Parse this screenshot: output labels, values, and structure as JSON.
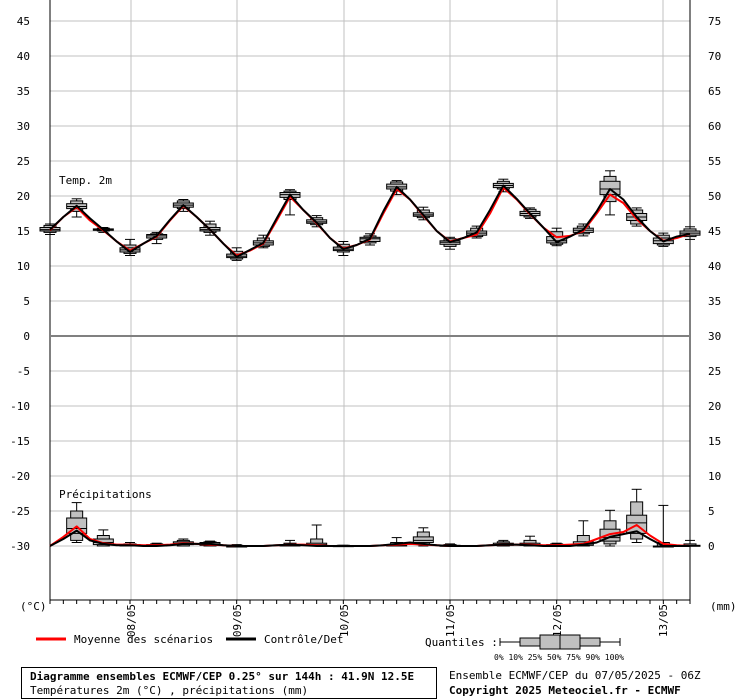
{
  "chart_data": {
    "type": "boxplot-line",
    "panels": [
      {
        "name": "Temp. 2m",
        "left_axis_ticks": [
          45,
          40,
          35,
          30,
          25,
          20,
          15,
          10,
          5,
          0
        ],
        "right_axis_ticks": [
          75,
          70,
          65,
          60,
          55,
          50,
          45,
          40,
          35,
          30
        ]
      },
      {
        "name": "Précipitations",
        "left_axis_ticks": [
          0,
          -5,
          -10,
          -15,
          -20,
          -25,
          -30
        ],
        "right_axis_ticks": [
          30,
          25,
          20,
          15,
          10,
          5,
          0
        ]
      }
    ],
    "left_unit": "(°C)",
    "right_unit": "(mm)",
    "x_labels": [
      "08/05",
      "09/05",
      "10/05",
      "11/05",
      "12/05",
      "13/05"
    ],
    "temperature": {
      "times": [
        0,
        0.5,
        1,
        1.5,
        2,
        2.5,
        3,
        3.5,
        4,
        4.5,
        5,
        5.5,
        6,
        6.5,
        7,
        7.5,
        8,
        8.5,
        9,
        9.5,
        10,
        10.5,
        11,
        11.5,
        12,
        12.5,
        13,
        13.5,
        14,
        14.5,
        15,
        15.5,
        16,
        16.5,
        17,
        17.5,
        18,
        18.5,
        19,
        19.5,
        20,
        20.5,
        21,
        21.5,
        22,
        22.5,
        23,
        23.5,
        24
      ],
      "scenario_mean": [
        15.1,
        17,
        18.4,
        16.5,
        15.1,
        13.5,
        12.2,
        13.2,
        14.2,
        16.5,
        18.6,
        17,
        15.2,
        13.2,
        11.5,
        12.2,
        13.2,
        16.5,
        19.9,
        18,
        16.1,
        14,
        12.5,
        13,
        13.8,
        17.5,
        21,
        19.5,
        17.2,
        15,
        13.5,
        14,
        14.5,
        17.5,
        21.2,
        19.5,
        17.4,
        15.5,
        14.1,
        14.3,
        15,
        17.5,
        20.2,
        19,
        16.7,
        15,
        13.6,
        14,
        14.6
      ],
      "control": [
        15.2,
        17,
        18.6,
        16.8,
        15.2,
        13.5,
        12,
        13.2,
        14.3,
        16.6,
        18.7,
        17,
        15.2,
        13.2,
        11.3,
        12.3,
        13.3,
        16.8,
        20.2,
        18,
        16.2,
        14,
        12.4,
        13,
        13.9,
        17.8,
        21.3,
        19.5,
        17.3,
        15,
        13.4,
        14,
        14.8,
        18,
        21.5,
        19.6,
        17.5,
        15.5,
        13.4,
        14.2,
        15.2,
        17.8,
        21,
        19.5,
        17,
        15,
        13.5,
        14.2,
        14.6
      ],
      "boxes": [
        {
          "t": 0,
          "p0": 14.5,
          "p10": 14.8,
          "p25": 15.0,
          "p50": 15.2,
          "p75": 15.5,
          "p90": 15.8,
          "p100": 16.0
        },
        {
          "t": 1,
          "p0": 17.0,
          "p10": 17.8,
          "p25": 18.2,
          "p50": 18.5,
          "p75": 18.9,
          "p90": 19.3,
          "p100": 19.6
        },
        {
          "t": 2,
          "p0": 14.8,
          "p10": 15.0,
          "p25": 15.1,
          "p50": 15.2,
          "p75": 15.3,
          "p90": 15.4,
          "p100": 15.5
        },
        {
          "t": 3,
          "p0": 11.5,
          "p10": 11.8,
          "p25": 12.0,
          "p50": 12.3,
          "p75": 12.6,
          "p90": 13.0,
          "p100": 13.8
        },
        {
          "t": 4,
          "p0": 13.2,
          "p10": 13.8,
          "p25": 14.0,
          "p50": 14.3,
          "p75": 14.5,
          "p90": 14.6,
          "p100": 14.8
        },
        {
          "t": 5,
          "p0": 17.8,
          "p10": 18.2,
          "p25": 18.4,
          "p50": 18.7,
          "p75": 19.0,
          "p90": 19.3,
          "p100": 19.5
        },
        {
          "t": 6,
          "p0": 14.4,
          "p10": 14.8,
          "p25": 15.0,
          "p50": 15.2,
          "p75": 15.5,
          "p90": 16.0,
          "p100": 16.4
        },
        {
          "t": 7,
          "p0": 10.8,
          "p10": 11.0,
          "p25": 11.2,
          "p50": 11.4,
          "p75": 11.7,
          "p90": 12.1,
          "p100": 12.6
        },
        {
          "t": 8,
          "p0": 12.6,
          "p10": 12.8,
          "p25": 13.0,
          "p50": 13.3,
          "p75": 13.6,
          "p90": 14.0,
          "p100": 14.4
        },
        {
          "t": 9,
          "p0": 17.3,
          "p10": 19.5,
          "p25": 19.8,
          "p50": 20.2,
          "p75": 20.5,
          "p90": 20.7,
          "p100": 20.9
        },
        {
          "t": 10,
          "p0": 15.6,
          "p10": 15.9,
          "p25": 16.1,
          "p50": 16.3,
          "p75": 16.6,
          "p90": 16.9,
          "p100": 17.2
        },
        {
          "t": 11,
          "p0": 11.5,
          "p10": 12.0,
          "p25": 12.2,
          "p50": 12.4,
          "p75": 12.7,
          "p90": 13.1,
          "p100": 13.5
        },
        {
          "t": 12,
          "p0": 13.0,
          "p10": 13.3,
          "p25": 13.5,
          "p50": 13.9,
          "p75": 14.1,
          "p90": 14.3,
          "p100": 14.6
        },
        {
          "t": 13,
          "p0": 20.2,
          "p10": 20.7,
          "p25": 21.0,
          "p50": 21.3,
          "p75": 21.7,
          "p90": 22.0,
          "p100": 22.2
        },
        {
          "t": 14,
          "p0": 16.6,
          "p10": 16.9,
          "p25": 17.1,
          "p50": 17.3,
          "p75": 17.6,
          "p90": 18.0,
          "p100": 18.4
        },
        {
          "t": 15,
          "p0": 12.4,
          "p10": 12.8,
          "p25": 13.1,
          "p50": 13.4,
          "p75": 13.6,
          "p90": 13.9,
          "p100": 14.1
        },
        {
          "t": 16,
          "p0": 14.0,
          "p10": 14.2,
          "p25": 14.4,
          "p50": 14.7,
          "p75": 15.0,
          "p90": 15.4,
          "p100": 15.7
        },
        {
          "t": 17,
          "p0": 20.6,
          "p10": 21.0,
          "p25": 21.2,
          "p50": 21.5,
          "p75": 21.8,
          "p90": 22.1,
          "p100": 22.4
        },
        {
          "t": 18,
          "p0": 16.8,
          "p10": 17.0,
          "p25": 17.2,
          "p50": 17.5,
          "p75": 17.8,
          "p90": 18.1,
          "p100": 18.3
        },
        {
          "t": 19,
          "p0": 12.9,
          "p10": 13.1,
          "p25": 13.3,
          "p50": 13.6,
          "p75": 14.2,
          "p90": 14.9,
          "p100": 15.4
        },
        {
          "t": 20,
          "p0": 14.3,
          "p10": 14.6,
          "p25": 14.8,
          "p50": 15.1,
          "p75": 15.4,
          "p90": 15.7,
          "p100": 16.0
        },
        {
          "t": 21,
          "p0": 17.3,
          "p10": 19.2,
          "p25": 20.2,
          "p50": 21.0,
          "p75": 22.1,
          "p90": 22.8,
          "p100": 23.6
        },
        {
          "t": 22,
          "p0": 15.7,
          "p10": 16.0,
          "p25": 16.5,
          "p50": 17.0,
          "p75": 17.5,
          "p90": 18.0,
          "p100": 18.3
        },
        {
          "t": 23,
          "p0": 12.8,
          "p10": 13.0,
          "p25": 13.2,
          "p50": 13.6,
          "p75": 14.0,
          "p90": 14.4,
          "p100": 14.7
        },
        {
          "t": 24,
          "p0": 13.8,
          "p10": 14.2,
          "p25": 14.4,
          "p50": 14.7,
          "p75": 15.0,
          "p90": 15.3,
          "p100": 15.6
        }
      ]
    },
    "precipitation": {
      "times": [
        0,
        0.5,
        1,
        1.5,
        2,
        2.5,
        3,
        3.5,
        4,
        4.5,
        5,
        5.5,
        6,
        6.5,
        7,
        7.5,
        8,
        8.5,
        9,
        9.5,
        10,
        10.5,
        11,
        11.5,
        12,
        12.5,
        13,
        13.5,
        14,
        14.5,
        15,
        15.5,
        16,
        16.5,
        17,
        17.5,
        18,
        18.5,
        19,
        19.5,
        20,
        20.5,
        21,
        21.5,
        22,
        22.5,
        23,
        23.5,
        24
      ],
      "scenario_mean": [
        0,
        1.3,
        2.8,
        1.0,
        0.4,
        0.2,
        0.2,
        0.1,
        0.1,
        0.2,
        0.4,
        0.3,
        0.2,
        0.1,
        0,
        0,
        0,
        0.1,
        0.2,
        0.2,
        0.1,
        0,
        0,
        0,
        0,
        0.1,
        0.2,
        0.3,
        0.2,
        0.1,
        0,
        0,
        0,
        0.1,
        0.2,
        0.2,
        0.2,
        0.1,
        0.1,
        0.2,
        0.3,
        1.0,
        1.7,
        2.0,
        3.0,
        1.5,
        0.3,
        0.1,
        0
      ],
      "control": [
        0,
        1.0,
        2.2,
        0.8,
        0.3,
        0.1,
        0.1,
        0,
        0,
        0.1,
        0.3,
        0.3,
        0.3,
        0.1,
        0,
        0,
        0,
        0.1,
        0.2,
        0.1,
        0,
        0,
        0,
        0,
        0,
        0.1,
        0.3,
        0.5,
        0.3,
        0.1,
        0,
        0,
        0,
        0.1,
        0.2,
        0.2,
        0.1,
        0,
        0,
        0,
        0.2,
        0.5,
        1.3,
        1.7,
        2.1,
        1.0,
        0,
        0,
        0
      ],
      "boxes": [
        {
          "t": 1,
          "p0": 0.5,
          "p10": 0.8,
          "p25": 1.8,
          "p50": 2.5,
          "p75": 4.0,
          "p90": 5.0,
          "p100": 6.2
        },
        {
          "t": 2,
          "p0": 0,
          "p10": 0,
          "p25": 0.2,
          "p50": 0.5,
          "p75": 1.0,
          "p90": 1.5,
          "p100": 2.3
        },
        {
          "t": 3,
          "p0": 0,
          "p10": 0,
          "p25": 0,
          "p50": 0.1,
          "p75": 0.2,
          "p90": 0.3,
          "p100": 0.5
        },
        {
          "t": 4,
          "p0": 0,
          "p10": 0,
          "p25": 0,
          "p50": 0.1,
          "p75": 0.2,
          "p90": 0.3,
          "p100": 0.4
        },
        {
          "t": 5,
          "p0": 0,
          "p10": 0,
          "p25": 0.2,
          "p50": 0.4,
          "p75": 0.6,
          "p90": 0.8,
          "p100": 1.0
        },
        {
          "t": 6,
          "p0": 0,
          "p10": 0,
          "p25": 0.1,
          "p50": 0.3,
          "p75": 0.5,
          "p90": 0.6,
          "p100": 0.7
        },
        {
          "t": 7,
          "p0": 0,
          "p10": 0,
          "p25": 0,
          "p50": 0,
          "p75": 0,
          "p90": 0.1,
          "p100": 0.2
        },
        {
          "t": 9,
          "p0": 0,
          "p10": 0,
          "p25": 0,
          "p50": 0.1,
          "p75": 0.2,
          "p90": 0.4,
          "p100": 0.8
        },
        {
          "t": 10,
          "p0": 0,
          "p10": 0,
          "p25": 0.1,
          "p50": 0.2,
          "p75": 0.4,
          "p90": 1.0,
          "p100": 3.0
        },
        {
          "t": 11,
          "p0": 0,
          "p10": 0,
          "p25": 0,
          "p50": 0,
          "p75": 0.05,
          "p90": 0.1,
          "p100": 0.1
        },
        {
          "t": 13,
          "p0": 0,
          "p10": 0,
          "p25": 0,
          "p50": 0.1,
          "p75": 0.2,
          "p90": 0.5,
          "p100": 1.2
        },
        {
          "t": 14,
          "p0": 0,
          "p10": 0.2,
          "p25": 0.5,
          "p50": 0.8,
          "p75": 1.3,
          "p90": 2.0,
          "p100": 2.6
        },
        {
          "t": 15,
          "p0": 0,
          "p10": 0,
          "p25": 0,
          "p50": 0,
          "p75": 0.1,
          "p90": 0.2,
          "p100": 0.3
        },
        {
          "t": 17,
          "p0": 0,
          "p10": 0,
          "p25": 0.1,
          "p50": 0.2,
          "p75": 0.4,
          "p90": 0.6,
          "p100": 0.8
        },
        {
          "t": 18,
          "p0": 0,
          "p10": 0,
          "p25": 0.1,
          "p50": 0.2,
          "p75": 0.4,
          "p90": 0.8,
          "p100": 1.4
        },
        {
          "t": 19,
          "p0": 0,
          "p10": 0,
          "p25": 0,
          "p50": 0.1,
          "p75": 0.2,
          "p90": 0.3,
          "p100": 0.4
        },
        {
          "t": 20,
          "p0": 0,
          "p10": 0,
          "p25": 0.1,
          "p50": 0.3,
          "p75": 0.6,
          "p90": 1.5,
          "p100": 3.6
        },
        {
          "t": 21,
          "p0": 0,
          "p10": 0.3,
          "p25": 0.7,
          "p50": 1.2,
          "p75": 2.4,
          "p90": 3.6,
          "p100": 5.1
        },
        {
          "t": 22,
          "p0": 0.5,
          "p10": 1.0,
          "p25": 1.8,
          "p50": 3.3,
          "p75": 4.4,
          "p90": 6.3,
          "p100": 8.1
        },
        {
          "t": 23,
          "p0": 0,
          "p10": 0,
          "p25": 0,
          "p50": 0,
          "p75": 0,
          "p90": 0.5,
          "p100": 5.8
        },
        {
          "t": 24,
          "p0": 0,
          "p10": 0,
          "p25": 0,
          "p50": 0,
          "p75": 0.1,
          "p90": 0.3,
          "p100": 0.8
        }
      ]
    },
    "colors": {
      "scenario_mean": "#ff0000",
      "control": "#000000",
      "box_fill": "#c0c0c0",
      "grid": "#c0c0c0"
    }
  },
  "legend": {
    "mean_label": "Moyenne des scénarios",
    "control_label": "Contrôle/Det",
    "quantiles_label": "Quantiles :",
    "quantile_ticks": "0%  10% 25% 50% 75% 90% 100%"
  },
  "info": {
    "title": "Diagramme ensembles ECMWF/CEP 0.25° sur 144h : 41.9N 12.5E",
    "subtitle": "Températures 2m (°C) , précipitations (mm)",
    "run": "Ensemble ECMWF/CEP du 07/05/2025 - 06Z",
    "copyright": "Copyright 2025 Meteociel.fr - ECMWF"
  }
}
